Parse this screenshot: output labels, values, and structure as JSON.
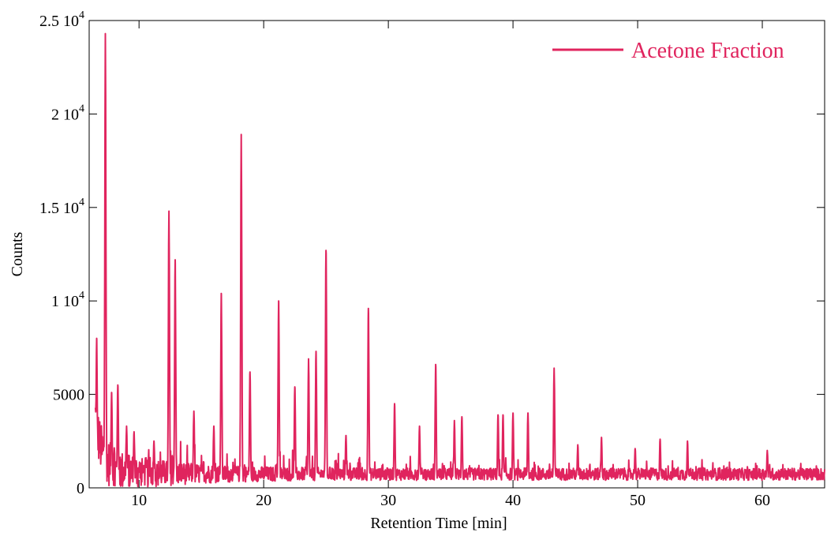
{
  "chart_data": {
    "type": "line",
    "xlabel": "Retention Time [min]",
    "ylabel": "Counts",
    "xlim": [
      6,
      65
    ],
    "ylim": [
      0,
      25000
    ],
    "x_ticks": [
      10,
      20,
      30,
      40,
      50,
      60
    ],
    "x_tick_labels": [
      "10",
      "20",
      "30",
      "40",
      "50",
      "60"
    ],
    "y_ticks": [
      {
        "value": 0,
        "base": "0",
        "exp": ""
      },
      {
        "value": 5000,
        "base": "5000",
        "exp": ""
      },
      {
        "value": 10000,
        "base": "1 10",
        "exp": "4"
      },
      {
        "value": 15000,
        "base": "1.5 10",
        "exp": "4"
      },
      {
        "value": 20000,
        "base": "2 10",
        "exp": "4"
      },
      {
        "value": 25000,
        "base": "2.5 10",
        "exp": "4"
      }
    ],
    "grid": false,
    "legend_position": "top-right",
    "series": [
      {
        "name": "Acetone Fraction",
        "color": "#e0245e",
        "x_start": 6.5,
        "x_end": 65,
        "peaks": [
          {
            "x": 6.6,
            "y": 8000
          },
          {
            "x": 7.3,
            "y": 24300
          },
          {
            "x": 7.8,
            "y": 5100
          },
          {
            "x": 8.3,
            "y": 5500
          },
          {
            "x": 9.0,
            "y": 3300
          },
          {
            "x": 9.6,
            "y": 3000
          },
          {
            "x": 11.2,
            "y": 2500
          },
          {
            "x": 12.4,
            "y": 14800
          },
          {
            "x": 12.9,
            "y": 12200
          },
          {
            "x": 14.4,
            "y": 4100
          },
          {
            "x": 16.0,
            "y": 3300
          },
          {
            "x": 16.6,
            "y": 10400
          },
          {
            "x": 18.2,
            "y": 18900
          },
          {
            "x": 18.9,
            "y": 6200
          },
          {
            "x": 21.2,
            "y": 10000
          },
          {
            "x": 22.5,
            "y": 5400
          },
          {
            "x": 23.6,
            "y": 6900
          },
          {
            "x": 24.2,
            "y": 7300
          },
          {
            "x": 25.0,
            "y": 12700
          },
          {
            "x": 26.6,
            "y": 2800
          },
          {
            "x": 28.4,
            "y": 9600
          },
          {
            "x": 30.5,
            "y": 4500
          },
          {
            "x": 32.5,
            "y": 3300
          },
          {
            "x": 33.8,
            "y": 6600
          },
          {
            "x": 35.3,
            "y": 3600
          },
          {
            "x": 35.9,
            "y": 3800
          },
          {
            "x": 38.8,
            "y": 3900
          },
          {
            "x": 39.2,
            "y": 3900
          },
          {
            "x": 40.0,
            "y": 4000
          },
          {
            "x": 41.2,
            "y": 4000
          },
          {
            "x": 43.3,
            "y": 6400
          },
          {
            "x": 45.2,
            "y": 2300
          },
          {
            "x": 47.1,
            "y": 2700
          },
          {
            "x": 49.8,
            "y": 2100
          },
          {
            "x": 51.8,
            "y": 2600
          },
          {
            "x": 54.0,
            "y": 2500
          },
          {
            "x": 60.4,
            "y": 2000
          }
        ]
      }
    ]
  }
}
